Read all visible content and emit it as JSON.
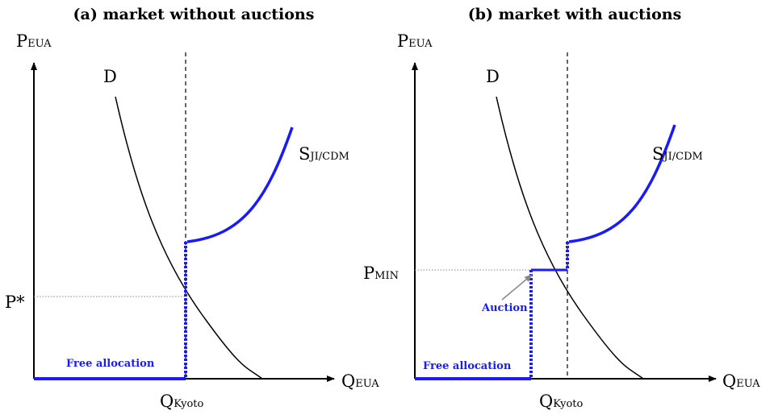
{
  "panels": [
    {
      "title": "(a) market without auctions",
      "y_axis": {
        "main": "P",
        "sub": "EUA"
      },
      "x_axis": {
        "main": "Q",
        "sub": "EUA"
      },
      "demand": "D",
      "supply": {
        "main": "S",
        "sub": "JI/CDM"
      },
      "kyoto": {
        "main": "Q",
        "sub": "Kyoto"
      },
      "price": "P*",
      "free": "Free allocation"
    },
    {
      "title": "(b) market with auctions",
      "y_axis": {
        "main": "P",
        "sub": "EUA"
      },
      "x_axis": {
        "main": "Q",
        "sub": "EUA"
      },
      "demand": "D",
      "supply": {
        "main": "S",
        "sub": "JI/CDM"
      },
      "kyoto": {
        "main": "Q",
        "sub": "Kyoto"
      },
      "price": {
        "main": "P",
        "sub": "MIN"
      },
      "free": "Free allocation",
      "auction": "Auction"
    }
  ]
}
